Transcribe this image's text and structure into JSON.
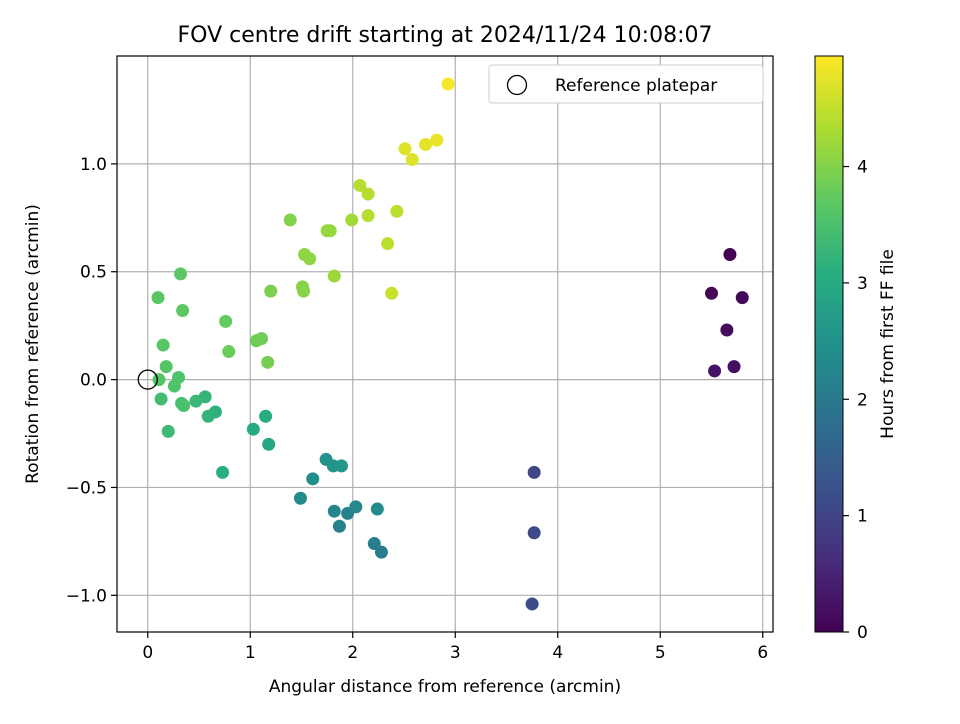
{
  "chart_data": {
    "type": "scatter",
    "title": "FOV centre drift starting at 2024/11/24 10:08:07",
    "xlabel": "Angular distance from reference (arcmin)",
    "ylabel": "Rotation from reference (arcmin)",
    "xlim": [
      -0.3,
      6.1
    ],
    "ylim": [
      -1.17,
      1.5
    ],
    "xticks": [
      0,
      1,
      2,
      3,
      4,
      5,
      6
    ],
    "xtick_labels": [
      "0",
      "1",
      "2",
      "3",
      "4",
      "5",
      "6"
    ],
    "yticks": [
      -1.0,
      -0.5,
      0.0,
      0.5,
      1.0
    ],
    "ytick_labels": [
      "−1.0",
      "−0.5",
      "0.0",
      "0.5",
      "1.0"
    ],
    "grid": true,
    "legend": {
      "placement": "top-right",
      "entries": [
        "Reference platepar"
      ]
    },
    "colorbar": {
      "label": "Hours from first FF file",
      "colormap": "viridis",
      "range": [
        0,
        4.95
      ],
      "ticks": [
        0,
        1,
        2,
        3,
        4
      ],
      "tick_labels": [
        "0",
        "1",
        "2",
        "3",
        "4"
      ]
    },
    "reference_point": {
      "name": "Reference platepar",
      "x": 0.0,
      "y": 0.0
    },
    "points": [
      {
        "x": 5.68,
        "y": 0.58,
        "hours": 0.0
      },
      {
        "x": 5.5,
        "y": 0.4,
        "hours": 0.05
      },
      {
        "x": 5.8,
        "y": 0.38,
        "hours": 0.1
      },
      {
        "x": 5.65,
        "y": 0.23,
        "hours": 0.15
      },
      {
        "x": 5.72,
        "y": 0.06,
        "hours": 0.2
      },
      {
        "x": 5.53,
        "y": 0.04,
        "hours": 0.25
      },
      {
        "x": 3.77,
        "y": -0.43,
        "hours": 1.05
      },
      {
        "x": 3.77,
        "y": -0.71,
        "hours": 1.1
      },
      {
        "x": 3.75,
        "y": -1.04,
        "hours": 1.15
      },
      {
        "x": 2.28,
        "y": -0.8,
        "hours": 2.05
      },
      {
        "x": 2.21,
        "y": -0.76,
        "hours": 2.1
      },
      {
        "x": 1.87,
        "y": -0.68,
        "hours": 2.15
      },
      {
        "x": 1.95,
        "y": -0.62,
        "hours": 2.2
      },
      {
        "x": 1.82,
        "y": -0.61,
        "hours": 2.25
      },
      {
        "x": 2.03,
        "y": -0.59,
        "hours": 2.3
      },
      {
        "x": 2.24,
        "y": -0.6,
        "hours": 2.35
      },
      {
        "x": 1.49,
        "y": -0.55,
        "hours": 2.4
      },
      {
        "x": 1.61,
        "y": -0.46,
        "hours": 2.45
      },
      {
        "x": 1.74,
        "y": -0.37,
        "hours": 2.5
      },
      {
        "x": 1.81,
        "y": -0.4,
        "hours": 2.55
      },
      {
        "x": 1.89,
        "y": -0.4,
        "hours": 2.6
      },
      {
        "x": 1.18,
        "y": -0.3,
        "hours": 2.95
      },
      {
        "x": 1.03,
        "y": -0.23,
        "hours": 3.0
      },
      {
        "x": 1.15,
        "y": -0.17,
        "hours": 3.05
      },
      {
        "x": 0.73,
        "y": -0.43,
        "hours": 3.1
      },
      {
        "x": 0.66,
        "y": -0.15,
        "hours": 3.15
      },
      {
        "x": 0.59,
        "y": -0.17,
        "hours": 3.2
      },
      {
        "x": 0.56,
        "y": -0.08,
        "hours": 3.25
      },
      {
        "x": 0.47,
        "y": -0.1,
        "hours": 3.3
      },
      {
        "x": 0.2,
        "y": -0.24,
        "hours": 3.35
      },
      {
        "x": 0.13,
        "y": -0.09,
        "hours": 3.4
      },
      {
        "x": 0.33,
        "y": -0.11,
        "hours": 3.45
      },
      {
        "x": 0.35,
        "y": -0.12,
        "hours": 3.5
      },
      {
        "x": 0.26,
        "y": -0.03,
        "hours": 3.55
      },
      {
        "x": 0.3,
        "y": 0.01,
        "hours": 3.55
      },
      {
        "x": 0.11,
        "y": 0.0,
        "hours": 3.6
      },
      {
        "x": 0.18,
        "y": 0.06,
        "hours": 3.6
      },
      {
        "x": 0.15,
        "y": 0.16,
        "hours": 3.65
      },
      {
        "x": 0.1,
        "y": 0.38,
        "hours": 3.65
      },
      {
        "x": 0.32,
        "y": 0.49,
        "hours": 3.7
      },
      {
        "x": 0.34,
        "y": 0.32,
        "hours": 3.7
      },
      {
        "x": 0.76,
        "y": 0.27,
        "hours": 3.75
      },
      {
        "x": 0.79,
        "y": 0.13,
        "hours": 3.8
      },
      {
        "x": 1.06,
        "y": 0.18,
        "hours": 3.85
      },
      {
        "x": 1.11,
        "y": 0.19,
        "hours": 3.85
      },
      {
        "x": 1.17,
        "y": 0.08,
        "hours": 3.9
      },
      {
        "x": 1.2,
        "y": 0.41,
        "hours": 3.95
      },
      {
        "x": 1.39,
        "y": 0.74,
        "hours": 4.0
      },
      {
        "x": 1.51,
        "y": 0.43,
        "hours": 4.05
      },
      {
        "x": 1.52,
        "y": 0.41,
        "hours": 4.05
      },
      {
        "x": 1.53,
        "y": 0.58,
        "hours": 4.1
      },
      {
        "x": 1.58,
        "y": 0.56,
        "hours": 4.1
      },
      {
        "x": 1.75,
        "y": 0.69,
        "hours": 4.15
      },
      {
        "x": 1.78,
        "y": 0.69,
        "hours": 4.15
      },
      {
        "x": 1.82,
        "y": 0.48,
        "hours": 4.2
      },
      {
        "x": 1.99,
        "y": 0.74,
        "hours": 4.25
      },
      {
        "x": 2.07,
        "y": 0.9,
        "hours": 4.4
      },
      {
        "x": 2.15,
        "y": 0.86,
        "hours": 4.4
      },
      {
        "x": 2.15,
        "y": 0.76,
        "hours": 4.4
      },
      {
        "x": 2.34,
        "y": 0.63,
        "hours": 4.45
      },
      {
        "x": 2.43,
        "y": 0.78,
        "hours": 4.45
      },
      {
        "x": 2.38,
        "y": 0.4,
        "hours": 4.55
      },
      {
        "x": 2.51,
        "y": 1.07,
        "hours": 4.7
      },
      {
        "x": 2.58,
        "y": 1.02,
        "hours": 4.7
      },
      {
        "x": 2.71,
        "y": 1.09,
        "hours": 4.75
      },
      {
        "x": 2.82,
        "y": 1.11,
        "hours": 4.8
      },
      {
        "x": 2.93,
        "y": 1.37,
        "hours": 4.9
      }
    ]
  }
}
